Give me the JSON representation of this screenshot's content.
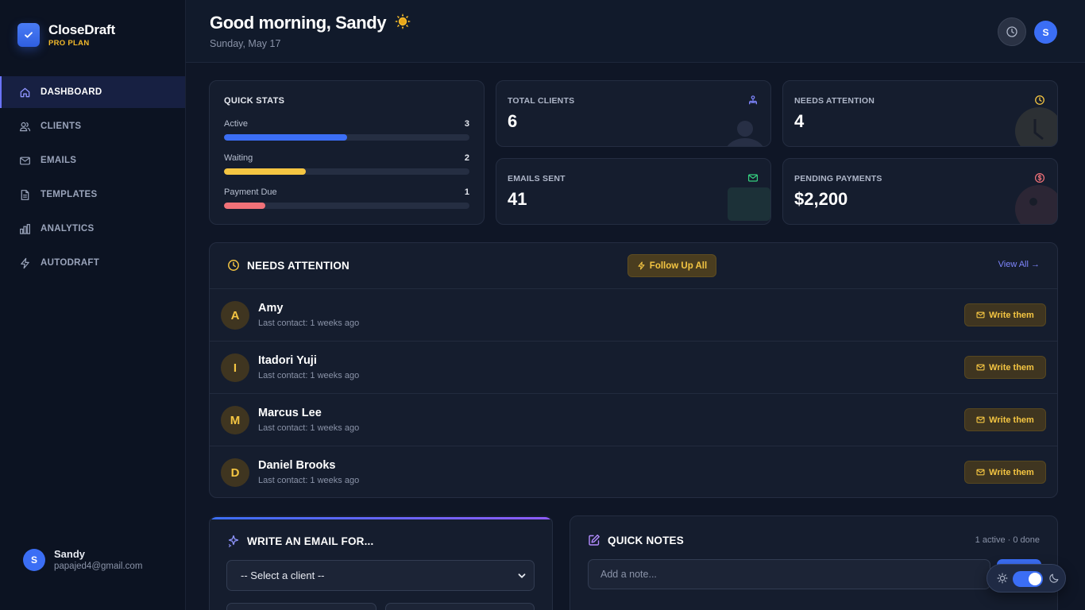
{
  "brand": {
    "name": "CloseDraft",
    "plan": "PRO PLAN"
  },
  "nav": {
    "items": [
      {
        "label": "DASHBOARD",
        "icon": "home-icon",
        "active": true
      },
      {
        "label": "CLIENTS",
        "icon": "users-icon",
        "active": false
      },
      {
        "label": "EMAILS",
        "icon": "mail-icon",
        "active": false
      },
      {
        "label": "TEMPLATES",
        "icon": "document-icon",
        "active": false
      },
      {
        "label": "ANALYTICS",
        "icon": "bar-chart-icon",
        "active": false
      },
      {
        "label": "AUTODRAFT",
        "icon": "lightning-icon",
        "active": false
      }
    ]
  },
  "user": {
    "initial": "S",
    "name": "Sandy",
    "email": "papajed4@gmail.com"
  },
  "header": {
    "greeting": "Good morning, Sandy",
    "date": "Sunday, May 17",
    "avatar_initial": "S"
  },
  "quick_stats": {
    "title": "QUICK STATS",
    "rows": [
      {
        "label": "Active",
        "value": "3",
        "fraction": 0.5,
        "color": "#3b6ef5"
      },
      {
        "label": "Waiting",
        "value": "2",
        "fraction": 0.333,
        "color": "#f4c542"
      },
      {
        "label": "Payment Due",
        "value": "1",
        "fraction": 0.167,
        "color": "#f07178"
      }
    ]
  },
  "stats": {
    "total_clients": {
      "label": "TOTAL CLIENTS",
      "value": "6",
      "icon": "users-icon",
      "color": "#7f86ff"
    },
    "needs_attention": {
      "label": "NEEDS ATTENTION",
      "value": "4",
      "icon": "clock-icon",
      "color": "#f4c542"
    },
    "emails_sent": {
      "label": "EMAILS SENT",
      "value": "41",
      "icon": "mail-icon",
      "color": "#35d07f"
    },
    "pending_payments": {
      "label": "PENDING PAYMENTS",
      "value": "$2,200",
      "icon": "dollar-icon",
      "color": "#f07178"
    }
  },
  "attention": {
    "title": "NEEDS ATTENTION",
    "follow_label": "Follow Up All",
    "view_all": "View All →",
    "button_label": "Write them",
    "clients": [
      {
        "initial": "A",
        "name": "Amy",
        "last_contact": "Last contact: 1 weeks ago"
      },
      {
        "initial": "I",
        "name": "Itadori Yuji",
        "last_contact": "Last contact: 1 weeks ago"
      },
      {
        "initial": "M",
        "name": "Marcus Lee",
        "last_contact": "Last contact: 1 weeks ago"
      },
      {
        "initial": "D",
        "name": "Daniel Brooks",
        "last_contact": "Last contact: 1 weeks ago"
      }
    ]
  },
  "write_email": {
    "title": "WRITE AN EMAIL FOR...",
    "select_value": "-- Select a client --"
  },
  "quick_notes": {
    "title": "QUICK NOTES",
    "count": "1 active · 0 done",
    "placeholder": "Add a note..."
  },
  "theme": {
    "mode": "dark"
  }
}
